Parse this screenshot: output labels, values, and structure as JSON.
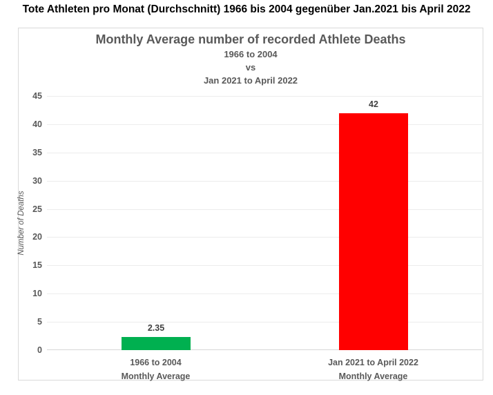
{
  "page_title": "Tote Athleten pro Monat (Durchschnitt) 1966 bis 2004 gegenüber Jan.2021 bis April 2022",
  "colors": {
    "bar_green": "#00B050",
    "bar_red": "#FF0000",
    "heading_text": "#000000",
    "chart_text_gray": "#595959",
    "value_label_gray": "#404040",
    "gridline": "#ECECEC",
    "axis_line": "#D6D6D6",
    "chart_border": "#D9D9D9"
  },
  "chart_data": {
    "type": "bar",
    "title": "Monthly Average number of recorded Athlete Deaths",
    "subtitle_lines": [
      "1966 to 2004",
      "vs",
      "Jan 2021 to April 2022"
    ],
    "ylabel": "Number of Deaths",
    "xlabel": "",
    "ylim": [
      0,
      45
    ],
    "yticks": [
      0,
      5,
      10,
      15,
      20,
      25,
      30,
      35,
      40,
      45
    ],
    "grid": true,
    "legend_position": "none",
    "categories": [
      {
        "line1": "1966 to 2004",
        "line2": "Monthly Average"
      },
      {
        "line1": "Jan 2021 to April 2022",
        "line2": "Monthly Average"
      }
    ],
    "values": [
      2.35,
      42
    ],
    "value_labels": [
      "2.35",
      "42"
    ],
    "bar_colors": [
      "#00B050",
      "#FF0000"
    ]
  }
}
